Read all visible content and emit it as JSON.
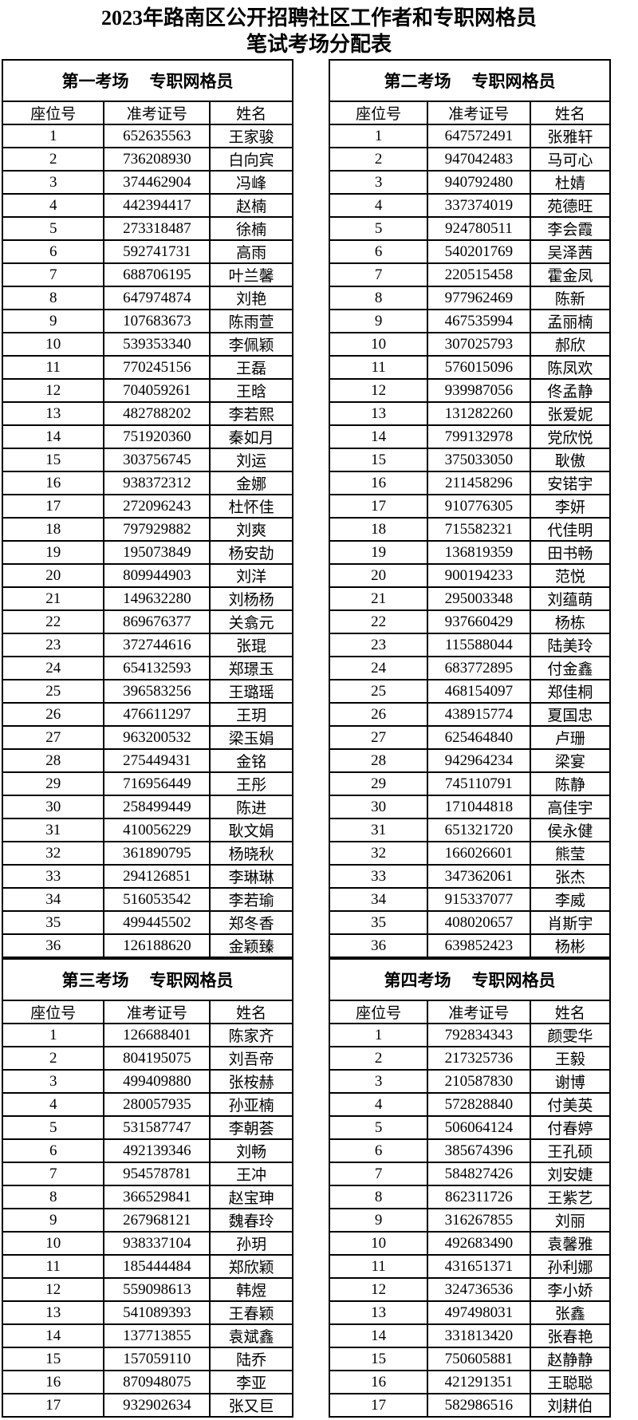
{
  "title": {
    "line1": "2023年路南区公开招聘社区工作者和专职网格员",
    "line2": "笔试考场分配表"
  },
  "columns": [
    "座位号",
    "准考证号",
    "姓名"
  ],
  "rooms": [
    {
      "room_label": "第一考场",
      "category_label": "专职网格员",
      "rows": [
        [
          "1",
          "652635563",
          "王家骏"
        ],
        [
          "2",
          "736208930",
          "白向宾"
        ],
        [
          "3",
          "374462904",
          "冯峰"
        ],
        [
          "4",
          "442394417",
          "赵楠"
        ],
        [
          "5",
          "273318487",
          "徐楠"
        ],
        [
          "6",
          "592741731",
          "高雨"
        ],
        [
          "7",
          "688706195",
          "叶兰馨"
        ],
        [
          "8",
          "647974874",
          "刘艳"
        ],
        [
          "9",
          "107683673",
          "陈雨萱"
        ],
        [
          "10",
          "539353340",
          "李佩颖"
        ],
        [
          "11",
          "770245156",
          "王磊"
        ],
        [
          "12",
          "704059261",
          "王晗"
        ],
        [
          "13",
          "482788202",
          "李若熙"
        ],
        [
          "14",
          "751920360",
          "秦如月"
        ],
        [
          "15",
          "303756745",
          "刘运"
        ],
        [
          "16",
          "938372312",
          "金娜"
        ],
        [
          "17",
          "272096243",
          "杜怀佳"
        ],
        [
          "18",
          "797929882",
          "刘爽"
        ],
        [
          "19",
          "195073849",
          "杨安劼"
        ],
        [
          "20",
          "809944903",
          "刘洋"
        ],
        [
          "21",
          "149632280",
          "刘杨杨"
        ],
        [
          "22",
          "869676377",
          "关翕元"
        ],
        [
          "23",
          "372744616",
          "张琨"
        ],
        [
          "24",
          "654132593",
          "郑璟玉"
        ],
        [
          "25",
          "396583256",
          "王璐瑶"
        ],
        [
          "26",
          "476611297",
          "王玥"
        ],
        [
          "27",
          "963200532",
          "梁玉娟"
        ],
        [
          "28",
          "275449431",
          "金铭"
        ],
        [
          "29",
          "716956449",
          "王彤"
        ],
        [
          "30",
          "258499449",
          "陈进"
        ],
        [
          "31",
          "410056229",
          "耿文娟"
        ],
        [
          "32",
          "361890795",
          "杨晓秋"
        ],
        [
          "33",
          "294126851",
          "李琳琳"
        ],
        [
          "34",
          "516053542",
          "李若瑜"
        ],
        [
          "35",
          "499445502",
          "郑冬香"
        ],
        [
          "36",
          "126188620",
          "金颖臻"
        ]
      ]
    },
    {
      "room_label": "第二考场",
      "category_label": "专职网格员",
      "rows": [
        [
          "1",
          "647572491",
          "张雅轩"
        ],
        [
          "2",
          "947042483",
          "马可心"
        ],
        [
          "3",
          "940792480",
          "杜婧"
        ],
        [
          "4",
          "337374019",
          "苑德旺"
        ],
        [
          "5",
          "924780511",
          "李会霞"
        ],
        [
          "6",
          "540201769",
          "吴泽茜"
        ],
        [
          "7",
          "220515458",
          "霍金凤"
        ],
        [
          "8",
          "977962469",
          "陈新"
        ],
        [
          "9",
          "467535994",
          "孟丽楠"
        ],
        [
          "10",
          "307025793",
          "郝欣"
        ],
        [
          "11",
          "576015096",
          "陈凤欢"
        ],
        [
          "12",
          "939987056",
          "佟孟静"
        ],
        [
          "13",
          "131282260",
          "张爱妮"
        ],
        [
          "14",
          "799132978",
          "党欣悦"
        ],
        [
          "15",
          "375033050",
          "耿傲"
        ],
        [
          "16",
          "211458296",
          "安锘宇"
        ],
        [
          "17",
          "910776305",
          "李妍"
        ],
        [
          "18",
          "715582321",
          "代佳明"
        ],
        [
          "19",
          "136819359",
          "田书畅"
        ],
        [
          "20",
          "900194233",
          "范悦"
        ],
        [
          "21",
          "295003348",
          "刘蕴萌"
        ],
        [
          "22",
          "937660429",
          "杨栋"
        ],
        [
          "23",
          "115588044",
          "陆美玲"
        ],
        [
          "24",
          "683772895",
          "付金鑫"
        ],
        [
          "25",
          "468154097",
          "郑佳桐"
        ],
        [
          "26",
          "438915774",
          "夏国忠"
        ],
        [
          "27",
          "625464840",
          "卢珊"
        ],
        [
          "28",
          "942964234",
          "梁宴"
        ],
        [
          "29",
          "745110791",
          "陈静"
        ],
        [
          "30",
          "171044818",
          "高佳宇"
        ],
        [
          "31",
          "651321720",
          "侯永健"
        ],
        [
          "32",
          "166026601",
          "熊莹"
        ],
        [
          "33",
          "347362061",
          "张杰"
        ],
        [
          "34",
          "915337077",
          "李威"
        ],
        [
          "35",
          "408020657",
          "肖斯宇"
        ],
        [
          "36",
          "639852423",
          "杨彬"
        ]
      ]
    },
    {
      "room_label": "第三考场",
      "category_label": "专职网格员",
      "rows": [
        [
          "1",
          "126688401",
          "陈家齐"
        ],
        [
          "2",
          "804195075",
          "刘吾帝"
        ],
        [
          "3",
          "499409880",
          "张桉赫"
        ],
        [
          "4",
          "280057935",
          "孙亚楠"
        ],
        [
          "5",
          "531587747",
          "李朝荟"
        ],
        [
          "6",
          "492139346",
          "刘畅"
        ],
        [
          "7",
          "954578781",
          "王冲"
        ],
        [
          "8",
          "366529841",
          "赵宝珅"
        ],
        [
          "9",
          "267968121",
          "魏春玲"
        ],
        [
          "10",
          "938337104",
          "孙玥"
        ],
        [
          "11",
          "185444484",
          "郑欣颖"
        ],
        [
          "12",
          "559098613",
          "韩煜"
        ],
        [
          "13",
          "541089393",
          "王春颖"
        ],
        [
          "14",
          "137713855",
          "袁斌鑫"
        ],
        [
          "15",
          "157059110",
          "陆乔"
        ],
        [
          "16",
          "870948075",
          "李亚"
        ],
        [
          "17",
          "932902634",
          "张又巨"
        ]
      ]
    },
    {
      "room_label": "第四考场",
      "category_label": "专职网格员",
      "rows": [
        [
          "1",
          "792834343",
          "颜雯华"
        ],
        [
          "2",
          "217325736",
          "王毅"
        ],
        [
          "3",
          "210587830",
          "谢博"
        ],
        [
          "4",
          "572828840",
          "付美英"
        ],
        [
          "5",
          "506064124",
          "付春婷"
        ],
        [
          "6",
          "385674396",
          "王孔硕"
        ],
        [
          "7",
          "584827426",
          "刘安婕"
        ],
        [
          "8",
          "862311726",
          "王紫艺"
        ],
        [
          "9",
          "316267855",
          "刘丽"
        ],
        [
          "10",
          "492683490",
          "袁馨雅"
        ],
        [
          "11",
          "431651371",
          "孙利娜"
        ],
        [
          "12",
          "324736536",
          "李小娇"
        ],
        [
          "13",
          "497498031",
          "张鑫"
        ],
        [
          "14",
          "331813420",
          "张春艳"
        ],
        [
          "15",
          "750605881",
          "赵静静"
        ],
        [
          "16",
          "421291351",
          "王聪聪"
        ],
        [
          "17",
          "582986516",
          "刘耕伯"
        ]
      ]
    }
  ]
}
